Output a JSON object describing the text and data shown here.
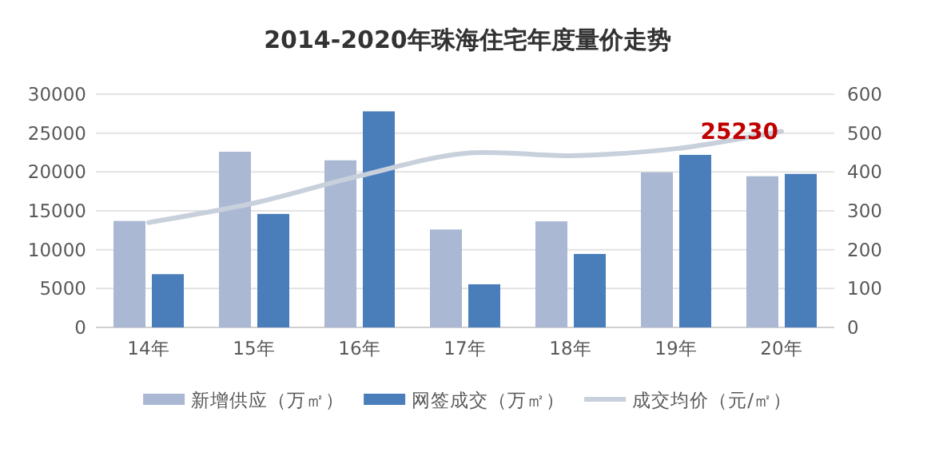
{
  "chart_data": {
    "type": "bar",
    "title": "2014-2020年珠海住宅年度量价走势",
    "categories": [
      "14年",
      "15年",
      "16年",
      "17年",
      "18年",
      "19年",
      "20年"
    ],
    "series": [
      {
        "name": "新增供应（万㎡）",
        "color": "#aab8d4",
        "axis": "y2",
        "values": [
          274,
          452,
          430,
          252,
          273,
          399,
          389
        ]
      },
      {
        "name": "网签成交（万㎡）",
        "color": "#4a7ebb",
        "axis": "y2",
        "values": [
          137,
          292,
          556,
          111,
          189,
          444,
          395
        ]
      },
      {
        "name": "成交均价（元/㎡）",
        "type": "line",
        "color": "#c8d0dc",
        "values": [
          13500,
          16000,
          19500,
          22400,
          22100,
          23000,
          25230
        ],
        "value_labels": [
          null,
          null,
          null,
          null,
          null,
          null,
          "25230"
        ]
      }
    ],
    "ylim": [
      0,
      30000
    ],
    "yticks": [
      0,
      5000,
      10000,
      15000,
      20000,
      25000,
      30000
    ],
    "y2lim": [
      0,
      600
    ],
    "y2ticks": [
      0,
      100,
      200,
      300,
      400,
      500,
      600
    ],
    "grid": "y",
    "legend": "bottom"
  }
}
